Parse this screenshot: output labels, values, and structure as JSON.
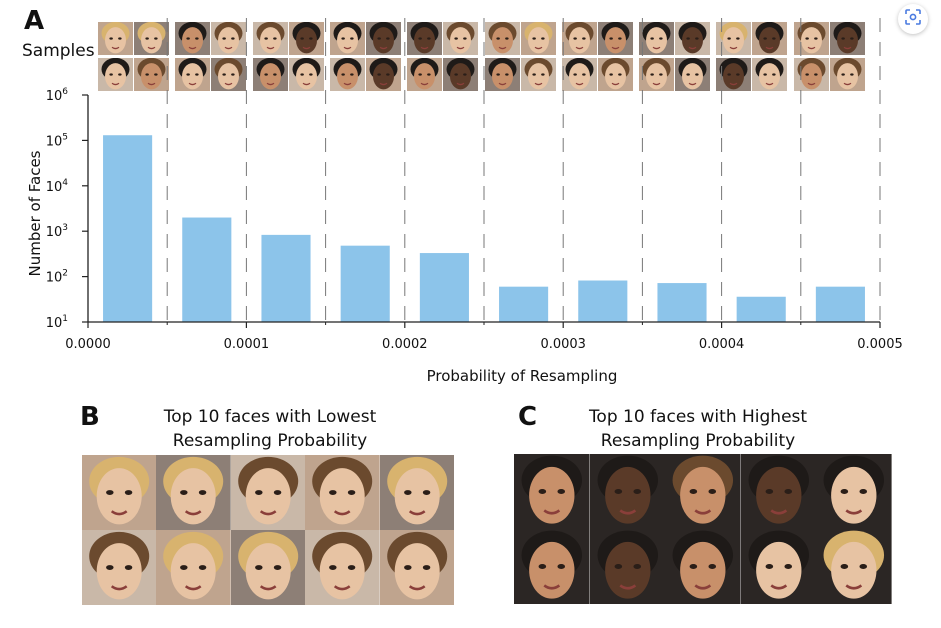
{
  "panels": {
    "a_letter": "A",
    "b_letter": "B",
    "c_letter": "C"
  },
  "samples_label": "Samples",
  "lowest_title_line1": "Top 10 faces with Lowest",
  "lowest_title_line2": "Resampling Probability",
  "highest_title_line1": "Top 10 faces with Highest",
  "highest_title_line2": "Resampling Probability",
  "toolbar": {
    "scan_icon": "lens-scan-icon"
  },
  "colors": {
    "bar": "#8cc4ea",
    "skin_light": "#e7c3a3",
    "skin_medium": "#c8906a",
    "skin_dark": "#5a3a28",
    "hair_blonde": "#d8b36e",
    "hair_brown": "#6b4a2e",
    "hair_black": "#1e1a18",
    "bg_dark": "#2b2624"
  },
  "chart_data": {
    "type": "bar",
    "xlabel": "Probability of Resampling",
    "ylabel": "Number of Faces",
    "xlim": [
      0.0,
      0.0005
    ],
    "ylim_log10": [
      1,
      6
    ],
    "yscale": "log",
    "x_ticks": [
      "0.0000",
      "0.0001",
      "0.0002",
      "0.0003",
      "0.0004",
      "0.0005"
    ],
    "y_ticks": [
      {
        "base": "10",
        "exp": "1"
      },
      {
        "base": "10",
        "exp": "2"
      },
      {
        "base": "10",
        "exp": "3"
      },
      {
        "base": "10",
        "exp": "4"
      },
      {
        "base": "10",
        "exp": "5"
      },
      {
        "base": "10",
        "exp": "6"
      }
    ],
    "bin_edges": [
      0.0,
      5e-05,
      0.0001,
      0.00015,
      0.0002,
      0.00025,
      0.0003,
      0.00035,
      0.0004,
      0.00045,
      0.0005
    ],
    "values": [
      130000,
      2000,
      830,
      480,
      330,
      60,
      82,
      72,
      36,
      60
    ],
    "grid": "vertical dashed at bin edges"
  },
  "sample_thumbs": [
    {
      "skin": "light",
      "hair": "blonde"
    },
    {
      "skin": "light",
      "hair": "blonde"
    },
    {
      "skin": "light",
      "hair": "black"
    },
    {
      "skin": "medium",
      "hair": "brown"
    },
    {
      "skin": "medium",
      "hair": "black"
    },
    {
      "skin": "light",
      "hair": "brown"
    },
    {
      "skin": "light",
      "hair": "black"
    },
    {
      "skin": "light",
      "hair": "brown"
    },
    {
      "skin": "light",
      "hair": "brown"
    },
    {
      "skin": "dark",
      "hair": "black"
    },
    {
      "skin": "medium",
      "hair": "black"
    },
    {
      "skin": "light",
      "hair": "black"
    },
    {
      "skin": "light",
      "hair": "black"
    },
    {
      "skin": "dark",
      "hair": "black"
    },
    {
      "skin": "medium",
      "hair": "black"
    },
    {
      "skin": "dark",
      "hair": "black"
    },
    {
      "skin": "dark",
      "hair": "black"
    },
    {
      "skin": "light",
      "hair": "brown"
    },
    {
      "skin": "medium",
      "hair": "black"
    },
    {
      "skin": "dark",
      "hair": "black"
    },
    {
      "skin": "medium",
      "hair": "brown"
    },
    {
      "skin": "light",
      "hair": "blonde"
    },
    {
      "skin": "medium",
      "hair": "black"
    },
    {
      "skin": "light",
      "hair": "brown"
    },
    {
      "skin": "light",
      "hair": "brown"
    },
    {
      "skin": "medium",
      "hair": "black"
    },
    {
      "skin": "light",
      "hair": "black"
    },
    {
      "skin": "light",
      "hair": "brown"
    },
    {
      "skin": "light",
      "hair": "black"
    },
    {
      "skin": "dark",
      "hair": "black"
    },
    {
      "skin": "light",
      "hair": "brown"
    },
    {
      "skin": "light",
      "hair": "black"
    },
    {
      "skin": "light",
      "hair": "blonde"
    },
    {
      "skin": "dark",
      "hair": "black"
    },
    {
      "skin": "dark",
      "hair": "black"
    },
    {
      "skin": "light",
      "hair": "black"
    },
    {
      "skin": "light",
      "hair": "brown"
    },
    {
      "skin": "dark",
      "hair": "black"
    },
    {
      "skin": "medium",
      "hair": "brown"
    },
    {
      "skin": "light",
      "hair": "brown"
    }
  ],
  "lowest_faces": [
    {
      "skin": "light",
      "hair": "blonde"
    },
    {
      "skin": "light",
      "hair": "blonde"
    },
    {
      "skin": "light",
      "hair": "brown"
    },
    {
      "skin": "light",
      "hair": "brown"
    },
    {
      "skin": "light",
      "hair": "blonde"
    },
    {
      "skin": "light",
      "hair": "brown"
    },
    {
      "skin": "light",
      "hair": "blonde"
    },
    {
      "skin": "light",
      "hair": "blonde"
    },
    {
      "skin": "light",
      "hair": "brown"
    },
    {
      "skin": "light",
      "hair": "brown"
    }
  ],
  "highest_faces": [
    {
      "skin": "medium",
      "hair": "black"
    },
    {
      "skin": "dark",
      "hair": "black"
    },
    {
      "skin": "medium",
      "hair": "brown"
    },
    {
      "skin": "dark",
      "hair": "black"
    },
    {
      "skin": "light",
      "hair": "black"
    },
    {
      "skin": "medium",
      "hair": "black"
    },
    {
      "skin": "dark",
      "hair": "black"
    },
    {
      "skin": "medium",
      "hair": "black"
    },
    {
      "skin": "light",
      "hair": "black"
    },
    {
      "skin": "light",
      "hair": "blonde"
    }
  ]
}
